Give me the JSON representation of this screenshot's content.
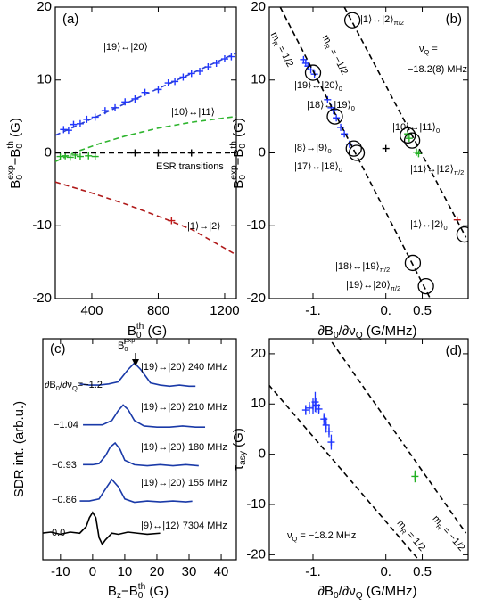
{
  "chart_data": [
    {
      "type": "scatter",
      "panel_label": "(a)",
      "xlabel": [
        {
          "t": "B"
        },
        {
          "sub": "0"
        },
        {
          "sup": "th"
        },
        {
          "t": " (G)"
        }
      ],
      "ylabel": [
        {
          "t": "B"
        },
        {
          "sub": "0"
        },
        {
          "sup": "exp"
        },
        {
          "t": "−B"
        },
        {
          "sub": "0"
        },
        {
          "sup": "th"
        },
        {
          "t": " (G)"
        }
      ],
      "xlim": [
        180,
        1270
      ],
      "ylim": [
        -20,
        20
      ],
      "xticks": [
        400,
        800,
        1200
      ],
      "yticks": [
        20,
        10,
        0,
        -10,
        -20
      ],
      "series": [
        {
          "style": "plus",
          "color": "#1f35ff",
          "x": [
            230,
            260,
            290,
            330,
            370,
            420,
            480,
            540,
            600,
            660,
            720,
            800,
            860,
            900,
            950,
            1000,
            1050,
            1100,
            1150,
            1200,
            1240
          ],
          "values": [
            3.2,
            3.1,
            3.9,
            4.0,
            4.6,
            4.9,
            5.8,
            6.2,
            7.0,
            7.4,
            8.3,
            8.7,
            9.6,
            9.8,
            10.4,
            10.9,
            11.2,
            11.8,
            12.3,
            12.9,
            13.2
          ]
        },
        {
          "style": "dashed",
          "color": "#2a3fd6",
          "x": [
            180,
            1270
          ],
          "values": [
            2.4,
            13.7
          ]
        },
        {
          "style": "plus",
          "color": "#22b022",
          "x": [
            210,
            240,
            270,
            300,
            330,
            380,
            420
          ],
          "values": [
            -0.5,
            -0.4,
            -0.6,
            -0.3,
            -0.5,
            -0.4,
            -0.5
          ]
        },
        {
          "style": "dashed",
          "color": "#2fb52f",
          "x": [
            180,
            300,
            450,
            600,
            800,
            1000,
            1270
          ],
          "values": [
            -1.2,
            0.1,
            1.3,
            2.3,
            3.4,
            4.2,
            5.0
          ]
        },
        {
          "style": "plus",
          "color": "#000000",
          "x": [
            660,
            800,
            1000
          ],
          "values": [
            0,
            0,
            0
          ]
        },
        {
          "style": "dashed",
          "color": "#000000",
          "x": [
            180,
            1270
          ],
          "values": [
            0,
            0
          ]
        },
        {
          "style": "plus",
          "color": "#c01818",
          "x": [
            880
          ],
          "values": [
            -9.3
          ]
        },
        {
          "style": "dashed",
          "color": "#b01a1a",
          "x": [
            180,
            400,
            600,
            800,
            1000,
            1270
          ],
          "values": [
            -4.0,
            -5.5,
            -7.0,
            -8.7,
            -10.5,
            -14.0
          ]
        }
      ],
      "annotations": [
        {
          "text": "|19⟩↔|20⟩",
          "color": "#1f35ff"
        },
        {
          "text": "|10⟩↔|11⟩",
          "color": "#22b022"
        },
        {
          "text": "ESR transitions"
        },
        {
          "text": "|1⟩↔|2⟩",
          "color": "#c01818"
        }
      ]
    },
    {
      "type": "scatter",
      "panel_label": "(b)",
      "xlabel": [
        {
          "t": "∂B"
        },
        {
          "sub": "0"
        },
        {
          "t": "/∂ν"
        },
        {
          "sub": "Q"
        },
        {
          "t": " (G/MHz)"
        }
      ],
      "ylabel": [
        {
          "t": "B"
        },
        {
          "sub": "0"
        },
        {
          "sup": "exp"
        },
        {
          "t": "−B"
        },
        {
          "sub": "0"
        },
        {
          "sup": "th"
        },
        {
          "t": " (G)"
        }
      ],
      "xlim": [
        -1.6,
        1.13
      ],
      "ylim": [
        -20,
        20
      ],
      "xticks": [
        {
          "value": -1,
          "label": "-1."
        },
        {
          "value": 0,
          "label": "0."
        },
        0.5
      ],
      "yticks": [
        20,
        10,
        0,
        -10,
        -20
      ],
      "series": [
        {
          "style": "plus",
          "color": "#1f35ff",
          "x": [
            -1.13,
            -1.1,
            -1.07,
            -1.03,
            -0.98,
            -0.8,
            -0.75,
            -0.72,
            -0.68,
            -0.62,
            -0.57,
            -0.5
          ],
          "values": [
            12.8,
            12.3,
            11.9,
            11.4,
            10.8,
            7.3,
            6.2,
            5.8,
            4.8,
            3.5,
            2.6,
            1.2
          ]
        },
        {
          "style": "plus",
          "color": "#22b022",
          "x": [
            0.3,
            0.32,
            0.42,
            0.45
          ],
          "values": [
            2.6,
            2.0,
            0.1,
            -0.1
          ]
        },
        {
          "style": "plus",
          "color": "#000000",
          "x": [
            0
          ],
          "values": [
            0.6
          ]
        },
        {
          "style": "plus",
          "color": "#c01818",
          "x": [
            0.98
          ],
          "values": [
            -9.2
          ]
        },
        {
          "style": "circle",
          "color": "#000000",
          "x": [
            -0.46,
            -1.0,
            -0.7,
            -0.44,
            -0.4,
            0.3,
            0.36,
            0.37,
            0.55,
            1.08
          ],
          "values": [
            18.2,
            11.0,
            5.0,
            0.6,
            0.0,
            2.4,
            1.7,
            -15.1,
            -18.3,
            -11.2
          ]
        },
        {
          "style": "dashed",
          "color": "#000000",
          "x": [
            -1.45,
            0.61
          ],
          "values": [
            20,
            -20
          ]
        },
        {
          "style": "dashed",
          "color": "#000000",
          "x": [
            -0.57,
            1.1
          ],
          "values": [
            20,
            -11.6
          ]
        }
      ],
      "annotations": [
        {
          "text": [
            {
              "t": "m"
            },
            {
              "sub": "R"
            },
            {
              "t": " = 1/2"
            }
          ]
        },
        {
          "text": [
            {
              "t": "m"
            },
            {
              "sub": "R"
            },
            {
              "t": " = −1/2"
            }
          ]
        },
        {
          "text": [
            {
              "t": "|1⟩↔|2⟩"
            },
            {
              "sub": "π/2"
            }
          ]
        },
        {
          "text": [
            {
              "t": "ν"
            },
            {
              "sub": "Q"
            },
            {
              "t": " ="
            }
          ]
        },
        {
          "text": "−18.2(8) MHz"
        },
        {
          "text": [
            {
              "t": "|19⟩↔|20⟩"
            },
            {
              "sub": "0"
            }
          ]
        },
        {
          "text": [
            {
              "t": "|18⟩↔|19⟩"
            },
            {
              "sub": "0"
            }
          ]
        },
        {
          "text": [
            {
              "t": "|8⟩↔|9⟩"
            },
            {
              "sub": "0"
            }
          ]
        },
        {
          "text": [
            {
              "t": "|17⟩↔|18⟩"
            },
            {
              "sub": "0"
            }
          ]
        },
        {
          "text": [
            {
              "t": "|10⟩↔|11⟩"
            },
            {
              "sub": "0"
            }
          ]
        },
        {
          "text": [
            {
              "t": "|11⟩↔|12⟩"
            },
            {
              "sub": "π/2"
            }
          ]
        },
        {
          "text": [
            {
              "t": "|1⟩↔|2⟩"
            },
            {
              "sub": "0"
            }
          ]
        },
        {
          "text": [
            {
              "t": "|18⟩↔|19⟩"
            },
            {
              "sub": "π/2"
            }
          ]
        },
        {
          "text": [
            {
              "t": "|19⟩↔|20⟩"
            },
            {
              "sub": "π/2"
            }
          ]
        }
      ]
    },
    {
      "type": "line",
      "panel_label": "(c)",
      "xlabel": [
        {
          "t": "B"
        },
        {
          "sub": "z"
        },
        {
          "t": "−B"
        },
        {
          "sub": "0"
        },
        {
          "sup": "th"
        },
        {
          "t": " (G)"
        }
      ],
      "ylabel": "SDR int. (arb.u.)",
      "xlim": [
        -15.5,
        44.7
      ],
      "ylim": [
        0,
        10
      ],
      "xticks": [
        -10,
        0,
        10,
        20,
        30,
        40
      ],
      "series": [
        {
          "style": "solid",
          "color": "#1a3aa8",
          "x": [
            -4,
            -1,
            2,
            5,
            8,
            11,
            13,
            15,
            18,
            21,
            24,
            27,
            30,
            32
          ],
          "values": [
            7.95,
            7.9,
            7.9,
            7.95,
            8.05,
            8.6,
            8.9,
            8.6,
            8.0,
            7.9,
            7.85,
            7.9,
            7.85,
            7.85
          ]
        },
        {
          "style": "solid",
          "color": "#1a3aa8",
          "x": [
            -3,
            0,
            3,
            6,
            8,
            9.5,
            11,
            13,
            16,
            20,
            24,
            28,
            32,
            35
          ],
          "values": [
            6.1,
            6.1,
            6.1,
            6.3,
            6.75,
            7.0,
            6.8,
            6.3,
            6.05,
            6.0,
            6.0,
            6.05,
            6.0,
            6.0
          ]
        },
        {
          "style": "solid",
          "color": "#1a3aa8",
          "x": [
            -3,
            0,
            2,
            4,
            5.5,
            7,
            8.5,
            10,
            13,
            17,
            21,
            25,
            29,
            33
          ],
          "values": [
            4.3,
            4.3,
            4.35,
            4.7,
            5.1,
            5.28,
            5.0,
            4.5,
            4.3,
            4.25,
            4.3,
            4.25,
            4.3,
            4.25
          ]
        },
        {
          "style": "solid",
          "color": "#1a3aa8",
          "x": [
            -4,
            -1,
            2,
            4,
            6,
            8,
            10,
            13,
            17,
            21,
            25,
            29,
            31
          ],
          "values": [
            2.66,
            2.66,
            2.75,
            3.2,
            3.63,
            3.3,
            2.75,
            2.6,
            2.66,
            2.62,
            2.66,
            2.62,
            2.65
          ]
        },
        {
          "style": "solid",
          "color": "#000000",
          "x": [
            -16,
            -13,
            -10,
            -7,
            -4,
            -2,
            -1,
            0,
            1,
            2,
            3,
            4,
            6,
            8,
            11,
            14,
            17,
            21
          ],
          "values": [
            1.2,
            1.25,
            1.15,
            1.25,
            1.2,
            1.5,
            1.9,
            2.14,
            1.9,
            1.0,
            0.7,
            0.9,
            1.2,
            1.15,
            1.25,
            1.2,
            1.15,
            1.2
          ]
        }
      ],
      "annotations": [
        {
          "text": [
            {
              "t": "B"
            },
            {
              "sub": "0"
            },
            {
              "sup": "exp"
            }
          ]
        },
        {
          "text": [
            {
              "t": "∂B"
            },
            {
              "sub": "0"
            },
            {
              "t": "/∂ν"
            },
            {
              "sub": "Q"
            },
            {
              "t": "=−1.2"
            }
          ]
        },
        {
          "text": "−1.04"
        },
        {
          "text": "−0.93"
        },
        {
          "text": "−0.86"
        },
        {
          "text": "0.0"
        },
        {
          "text": "|19⟩↔|20⟩  240 MHz"
        },
        {
          "text": "|19⟩↔|20⟩  210 MHz"
        },
        {
          "text": "|19⟩↔|20⟩  180 MHz"
        },
        {
          "text": "|19⟩↔|20⟩  155 MHz"
        },
        {
          "text": "|9⟩↔|12⟩  7304 MHz"
        }
      ]
    },
    {
      "type": "scatter",
      "panel_label": "(d)",
      "xlabel": [
        {
          "t": "∂B"
        },
        {
          "sub": "0"
        },
        {
          "t": "/∂ν"
        },
        {
          "sub": "Q"
        },
        {
          "t": " (G/MHz)"
        }
      ],
      "ylabel": [
        {
          "t": "τ"
        },
        {
          "sub": "asy"
        },
        {
          "t": " (G)"
        }
      ],
      "xlim": [
        -1.6,
        1.13
      ],
      "ylim": [
        -21,
        23
      ],
      "xticks": [
        {
          "value": -1,
          "label": "-1."
        },
        {
          "value": 0,
          "label": "0."
        },
        0.5
      ],
      "yticks": [
        20,
        10,
        0,
        -10,
        -20
      ],
      "series": [
        {
          "style": "plus",
          "color": "#1f35ff",
          "x": [
            -1.1,
            -1.05,
            -1.0,
            -0.97,
            -0.95,
            -0.92,
            -0.85,
            -0.82,
            -0.78,
            -0.75
          ],
          "values": [
            8.8,
            9.2,
            9.6,
            10.4,
            9.8,
            9.0,
            7.0,
            5.8,
            4.6,
            2.4
          ],
          "errors": [
            1,
            1.2,
            1.5,
            2,
            1.5,
            1,
            1.2,
            1.5,
            1.2,
            1.5
          ]
        },
        {
          "style": "plus",
          "color": "#22b022",
          "x": [
            0.4
          ],
          "values": [
            -4.4
          ],
          "errors": [
            1.2
          ]
        },
        {
          "style": "dashed",
          "color": "#000000",
          "x": [
            -1.69,
            0.45
          ],
          "values": [
            15.2,
            -21
          ]
        },
        {
          "style": "dashed",
          "color": "#000000",
          "x": [
            -0.74,
            1.1
          ],
          "values": [
            22.3,
            -15.7
          ]
        }
      ],
      "annotations": [
        {
          "text": [
            {
              "t": "ν"
            },
            {
              "sub": "Q"
            },
            {
              "t": " = −18.2 MHz"
            }
          ]
        },
        {
          "text": [
            {
              "t": "m"
            },
            {
              "sub": "R"
            },
            {
              "t": " = 1/2"
            }
          ]
        },
        {
          "text": [
            {
              "t": "m"
            },
            {
              "sub": "R"
            },
            {
              "t": " = −1/2"
            }
          ]
        }
      ]
    }
  ]
}
